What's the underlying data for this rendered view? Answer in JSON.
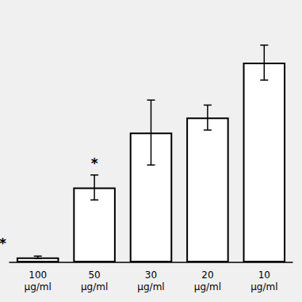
{
  "chart_data": {
    "type": "bar",
    "categories": [
      "100\nμg/ml",
      "50\nμg/ml",
      "30\nμg/ml",
      "20\nμg/ml",
      "10\nμg/ml"
    ],
    "values": [
      2,
      30,
      52,
      58,
      80
    ],
    "errors": [
      0.5,
      5,
      13,
      5,
      7
    ],
    "color": "#ffffff",
    "ylim": [
      0,
      100
    ],
    "yticks": [],
    "tick_labels": "x",
    "grid": false,
    "annotations": [
      {
        "text": "*",
        "category": "50\nμg/ml",
        "y": 37
      },
      {
        "text": "*",
        "y": 5
      }
    ]
  }
}
